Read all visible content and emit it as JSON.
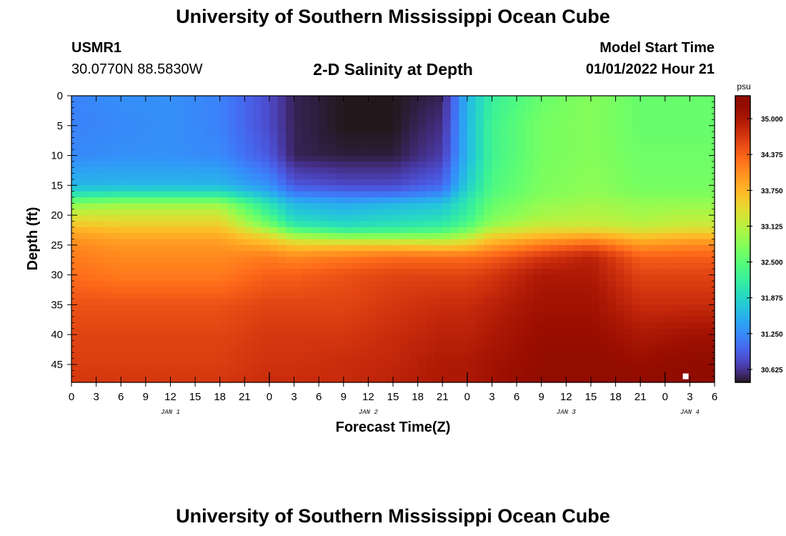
{
  "page": {
    "title": "University of Southern Mississippi Ocean Cube",
    "footer_title": "University of Southern Mississippi Ocean Cube",
    "station_id": "USMR1",
    "station_coords": "30.0770N  88.5830W",
    "subtitle": "2-D Salinity at Depth",
    "model_start_label": "Model Start Time",
    "model_start_value": "01/01/2022 Hour 21"
  },
  "chart_data": {
    "type": "heatmap",
    "title": "2-D Salinity at Depth",
    "xlabel": "Forecast Time(Z)",
    "ylabel": "Depth (ft)",
    "x_ticks": [
      "0",
      "3",
      "6",
      "9",
      "12",
      "15",
      "18",
      "21",
      "0",
      "3",
      "6",
      "9",
      "12",
      "15",
      "18",
      "21",
      "0",
      "3",
      "6",
      "9",
      "12",
      "15",
      "18",
      "21",
      "0",
      "3",
      "6"
    ],
    "x_range_hours": [
      0,
      78
    ],
    "day_labels": [
      {
        "label": "JAN 1",
        "hour": 12
      },
      {
        "label": "JAN 2",
        "hour": 36
      },
      {
        "label": "JAN 3",
        "hour": 60
      },
      {
        "label": "JAN 4",
        "hour": 75
      }
    ],
    "y_ticks": [
      0,
      5,
      10,
      15,
      20,
      25,
      30,
      35,
      40,
      45
    ],
    "ylim": [
      0,
      48
    ],
    "y_inverted": true,
    "colorbar": {
      "unit": "psu",
      "range": [
        30.4,
        35.4
      ],
      "ticks": [
        "35.000",
        "34.375",
        "33.750",
        "33.125",
        "32.500",
        "31.875",
        "31.250",
        "30.625"
      ],
      "tick_values": [
        35.0,
        34.375,
        33.75,
        33.125,
        32.5,
        31.875,
        31.25,
        30.625
      ],
      "colormap": "turbo"
    },
    "grid_depths": [
      0,
      5,
      10,
      15,
      17,
      18,
      20,
      22,
      23,
      25,
      27,
      30,
      35,
      40,
      45,
      48
    ],
    "series": [
      {
        "hour": 0,
        "values": [
          31.2,
          31.2,
          31.25,
          31.6,
          32.2,
          32.8,
          33.3,
          33.7,
          33.9,
          34.1,
          34.2,
          34.3,
          34.5,
          34.6,
          34.65,
          34.7
        ]
      },
      {
        "hour": 6,
        "values": [
          31.3,
          31.25,
          31.3,
          31.6,
          32.3,
          32.9,
          33.3,
          33.6,
          33.8,
          34.0,
          34.1,
          34.2,
          34.5,
          34.6,
          34.65,
          34.7
        ]
      },
      {
        "hour": 12,
        "values": [
          31.3,
          31.3,
          31.3,
          31.6,
          32.3,
          32.9,
          33.3,
          33.6,
          33.8,
          34.0,
          34.1,
          34.2,
          34.5,
          34.6,
          34.65,
          34.7
        ]
      },
      {
        "hour": 18,
        "values": [
          31.2,
          31.2,
          31.25,
          31.6,
          32.3,
          32.9,
          33.3,
          33.6,
          33.8,
          34.0,
          34.1,
          34.2,
          34.5,
          34.6,
          34.65,
          34.7
        ]
      },
      {
        "hour": 24,
        "values": [
          30.8,
          30.8,
          30.9,
          31.3,
          31.7,
          32.0,
          32.3,
          32.8,
          33.3,
          33.8,
          34.2,
          34.4,
          34.6,
          34.7,
          34.75,
          34.8
        ]
      },
      {
        "hour": 27,
        "values": [
          30.5,
          30.5,
          30.5,
          30.9,
          31.3,
          31.6,
          31.8,
          32.2,
          32.8,
          33.6,
          34.1,
          34.4,
          34.6,
          34.7,
          34.75,
          34.8
        ]
      },
      {
        "hour": 33,
        "values": [
          30.4,
          30.4,
          30.45,
          30.8,
          31.2,
          31.5,
          31.7,
          32.0,
          32.5,
          33.6,
          34.2,
          34.5,
          34.6,
          34.7,
          34.8,
          34.8
        ]
      },
      {
        "hour": 39,
        "values": [
          30.4,
          30.4,
          30.45,
          30.8,
          31.2,
          31.6,
          31.8,
          32.1,
          32.5,
          33.6,
          34.3,
          34.6,
          34.7,
          34.8,
          34.85,
          34.9
        ]
      },
      {
        "hour": 45,
        "values": [
          30.5,
          30.6,
          30.7,
          31.0,
          31.4,
          31.7,
          31.9,
          32.2,
          32.6,
          33.5,
          34.3,
          34.6,
          34.8,
          34.9,
          35.0,
          35.0
        ]
      },
      {
        "hour": 48,
        "values": [
          31.6,
          31.6,
          31.6,
          31.8,
          32.0,
          32.1,
          32.2,
          32.5,
          32.9,
          33.6,
          34.3,
          34.6,
          34.8,
          34.9,
          35.0,
          35.0
        ]
      },
      {
        "hour": 51,
        "values": [
          32.2,
          32.3,
          32.3,
          32.4,
          32.5,
          32.6,
          32.7,
          33.0,
          33.4,
          33.9,
          34.4,
          34.7,
          34.9,
          35.0,
          35.1,
          35.1
        ]
      },
      {
        "hour": 57,
        "values": [
          32.6,
          32.7,
          32.7,
          32.75,
          32.8,
          32.9,
          33.0,
          33.3,
          33.6,
          34.2,
          34.7,
          35.0,
          35.1,
          35.2,
          35.25,
          35.3
        ]
      },
      {
        "hour": 63,
        "values": [
          32.8,
          32.8,
          32.8,
          32.85,
          32.9,
          33.0,
          33.1,
          33.3,
          33.7,
          34.4,
          34.9,
          35.0,
          35.1,
          35.2,
          35.3,
          35.3
        ]
      },
      {
        "hour": 69,
        "values": [
          32.6,
          32.6,
          32.65,
          32.7,
          32.8,
          32.9,
          33.0,
          33.2,
          33.5,
          34.0,
          34.4,
          34.6,
          34.8,
          35.0,
          35.2,
          35.3
        ]
      },
      {
        "hour": 75,
        "values": [
          32.6,
          32.6,
          32.65,
          32.7,
          32.8,
          32.9,
          33.1,
          33.3,
          33.6,
          34.1,
          34.4,
          34.6,
          34.8,
          35.1,
          35.3,
          35.4
        ]
      },
      {
        "hour": 78,
        "values": [
          32.6,
          32.6,
          32.65,
          32.7,
          32.8,
          32.9,
          33.1,
          33.3,
          33.6,
          34.1,
          34.4,
          34.6,
          34.8,
          35.1,
          35.3,
          35.4
        ]
      }
    ],
    "marker": {
      "hour": 74.5,
      "depth": 47,
      "color": "#ffffff"
    },
    "grid": false,
    "legend": "none"
  }
}
